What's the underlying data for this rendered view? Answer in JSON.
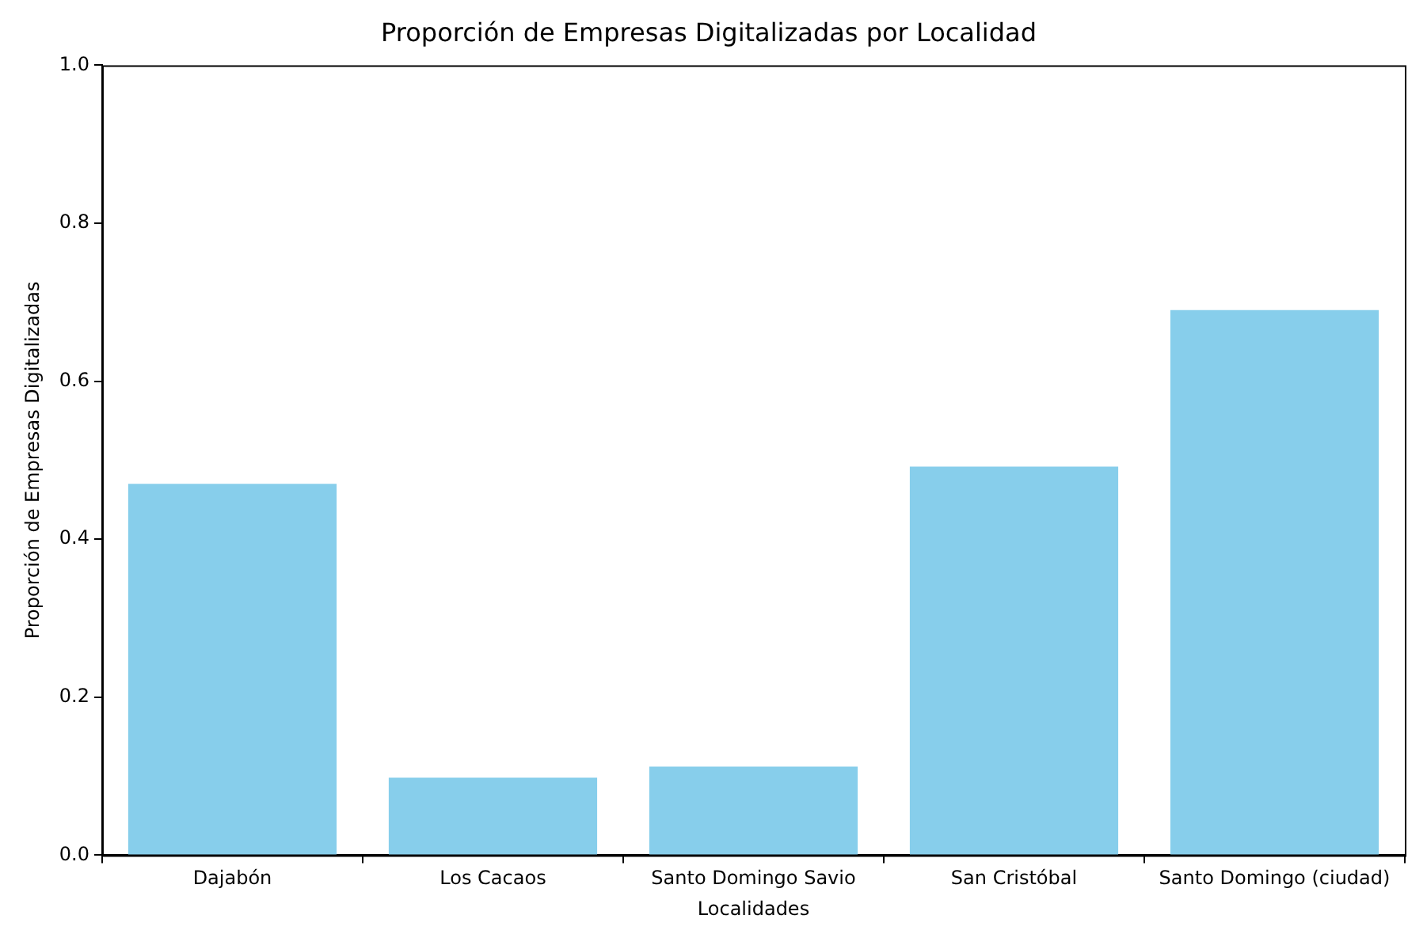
{
  "chart_data": {
    "type": "bar",
    "title": "Proporción de Empresas Digitalizadas por Localidad",
    "xlabel": "Localidades",
    "ylabel": "Proporción de Empresas Digitalizadas",
    "categories": [
      "Dajabón",
      "Los Cacaos",
      "Santo Domingo Savio",
      "San Cristóbal",
      "Santo Domingo (ciudad)"
    ],
    "values": [
      0.47,
      0.098,
      0.112,
      0.492,
      0.69
    ],
    "color": "#87ceeb",
    "ylim": [
      0,
      1
    ],
    "yticks": [
      {
        "value": 0,
        "label": "0.0"
      },
      {
        "value": 0.2,
        "label": "0.2"
      },
      {
        "value": 0.4,
        "label": "0.4"
      },
      {
        "value": 0.6,
        "label": "0.6"
      },
      {
        "value": 0.8,
        "label": "0.8"
      },
      {
        "value": 1,
        "label": "1.0"
      }
    ],
    "grid": false,
    "legend": false
  }
}
